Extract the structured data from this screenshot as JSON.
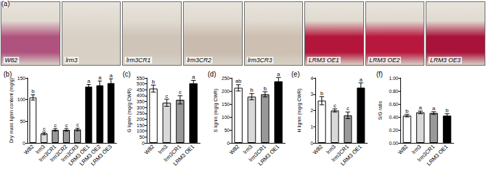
{
  "panel_a": {
    "title": "(a)",
    "images": [
      {
        "label": "W82",
        "color": "#b0527e"
      },
      {
        "label": "lrm3",
        "color": "#d8d0c4"
      },
      {
        "label": "lrm3CR1",
        "color": "#cfc4b8"
      },
      {
        "label": "lrm3CR2",
        "color": "#c9bcae"
      },
      {
        "label": "lrm3CR3",
        "color": "#cdbfb1"
      },
      {
        "label": "LRM3 OE1",
        "color": "#b3163a"
      },
      {
        "label": "LRM3 OE2",
        "color": "#b8183e"
      },
      {
        "label": "LRM3 OE3",
        "color": "#a9123a"
      }
    ]
  },
  "chart_data": [
    {
      "type": "bar",
      "title": "(b)",
      "y_label": "Dry mass lignin content (mg/g)",
      "categories": [
        "W82",
        "lrm3",
        "lrm3CR1",
        "lrm3CR2",
        "lrm3CR3",
        "LRM3 OE1",
        "LRM3 OE2",
        "LRM3 OE3"
      ],
      "values": [
        105,
        22,
        30,
        30,
        31,
        130,
        133,
        138
      ],
      "errors": [
        6,
        3,
        3,
        3,
        3,
        5,
        10,
        10
      ],
      "annotations": [
        "b",
        "c",
        "c",
        "c",
        "c",
        "a",
        "a",
        "a"
      ],
      "colors": [
        "#ffffff",
        "#d9d9d9",
        "#999999",
        "#999999",
        "#999999",
        "#000000",
        "#000000",
        "#000000"
      ],
      "ylim": [
        0,
        150
      ],
      "yticks": [
        0,
        50,
        100,
        150
      ]
    },
    {
      "type": "bar",
      "title": "(c)",
      "y_label": "G lignin (mg/g CWR)",
      "categories": [
        "W82",
        "lrm3",
        "lrm3CR1",
        "LRM3 OE1"
      ],
      "values": [
        460,
        340,
        365,
        505
      ],
      "errors": [
        30,
        30,
        35,
        25
      ],
      "annotations": [
        "b",
        "c",
        "c",
        "a"
      ],
      "colors": [
        "#ffffff",
        "#d9d9d9",
        "#999999",
        "#000000"
      ],
      "ylim": [
        0,
        550
      ],
      "yticks": [
        0,
        50,
        100,
        150,
        200,
        250,
        300,
        350,
        400,
        450,
        500,
        550
      ]
    },
    {
      "type": "bar",
      "title": "(d)",
      "y_label": "S lignin (mg/g CWR)",
      "categories": [
        "W82",
        "lrm3",
        "lrm3CR1",
        "LRM3 OE1"
      ],
      "values": [
        212,
        178,
        187,
        237
      ],
      "errors": [
        12,
        12,
        10,
        15
      ],
      "annotations": [
        "ab",
        "b",
        "b",
        "a"
      ],
      "colors": [
        "#ffffff",
        "#d9d9d9",
        "#999999",
        "#000000"
      ],
      "ylim": [
        0,
        250
      ],
      "yticks": [
        0,
        50,
        100,
        150,
        200,
        250
      ]
    },
    {
      "type": "bar",
      "title": "(e)",
      "y_label": "H lignin (mg/g CWR)",
      "categories": [
        "W82",
        "lrm3",
        "lrm3CR1",
        "LRM3 OE1"
      ],
      "values": [
        2.6,
        2.0,
        1.7,
        3.4
      ],
      "errors": [
        0.25,
        0.1,
        0.2,
        0.3
      ],
      "annotations": [
        "b",
        "c",
        "c",
        "a"
      ],
      "colors": [
        "#ffffff",
        "#d9d9d9",
        "#999999",
        "#000000"
      ],
      "ylim": [
        0,
        4
      ],
      "yticks": [
        0,
        1,
        2,
        3,
        4
      ]
    },
    {
      "type": "bar",
      "title": "(f)",
      "y_label": "S/G ratio",
      "categories": [
        "W82",
        "lrm3",
        "lrm3CR1",
        "LRM3 OE1"
      ],
      "values": [
        0.42,
        0.47,
        0.46,
        0.42
      ],
      "errors": [
        0.02,
        0.02,
        0.02,
        0.03
      ],
      "annotations": [
        "b",
        "a",
        "a",
        "b"
      ],
      "colors": [
        "#ffffff",
        "#d9d9d9",
        "#999999",
        "#000000"
      ],
      "ylim": [
        0,
        1
      ],
      "yticks": [
        {
          "value": 0,
          "label": "0.00"
        },
        {
          "value": 0.2,
          "label": "0.20"
        },
        {
          "value": 0.4,
          "label": "0.40"
        },
        {
          "value": 0.6,
          "label": "0.60"
        },
        {
          "value": 0.8,
          "label": "0.80"
        },
        {
          "value": 1,
          "label": "1.00"
        }
      ]
    }
  ]
}
